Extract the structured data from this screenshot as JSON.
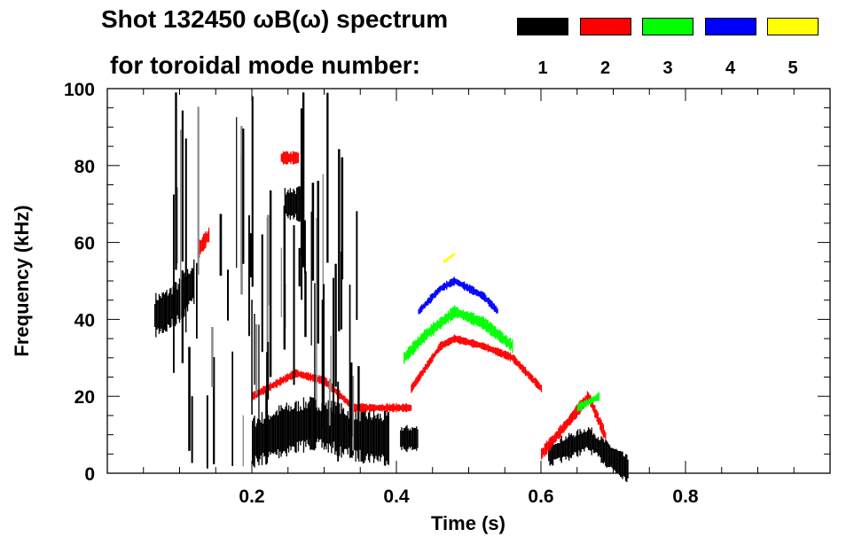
{
  "chart_data": {
    "type": "heatmap",
    "title_line1": "Shot 132450 ωB(ω) spectrum",
    "title_line2": "for toroidal mode number:",
    "xlabel": "Time (s)",
    "ylabel": "Frequency (kHz)",
    "xlim": [
      0,
      1.0
    ],
    "ylim": [
      0,
      100
    ],
    "xticks": [
      0.2,
      0.4,
      0.6,
      0.8
    ],
    "xtick_labels": [
      "0.2",
      "0.4",
      "0.6",
      "0.8"
    ],
    "yticks": [
      0,
      20,
      40,
      60,
      80,
      100
    ],
    "ytick_labels": [
      "0",
      "20",
      "40",
      "60",
      "80",
      "100"
    ],
    "legend": [
      {
        "mode": "1",
        "color": "#000000"
      },
      {
        "mode": "2",
        "color": "#ff0000"
      },
      {
        "mode": "3",
        "color": "#00ff00"
      },
      {
        "mode": "4",
        "color": "#0000ff"
      },
      {
        "mode": "5",
        "color": "#ffff00"
      }
    ],
    "features": [
      {
        "mode": 1,
        "t": [
          0.065,
          0.08,
          0.1,
          0.12
        ],
        "f": [
          41,
          42,
          45,
          50
        ],
        "width_khz": 10
      },
      {
        "mode": 1,
        "t": [
          0.2,
          0.24,
          0.28,
          0.31,
          0.34,
          0.39
        ],
        "f": [
          8,
          11,
          13,
          12,
          10,
          9
        ],
        "width_khz": 12
      },
      {
        "mode": 1,
        "t": [
          0.405,
          0.43
        ],
        "f": [
          9,
          9
        ],
        "width_khz": 6
      },
      {
        "mode": 1,
        "t": [
          0.245,
          0.27
        ],
        "f": [
          70,
          70
        ],
        "width_khz": 8
      },
      {
        "mode": 1,
        "t": [
          0.61,
          0.64,
          0.665,
          0.69,
          0.72
        ],
        "f": [
          5,
          7,
          9,
          5,
          1
        ],
        "width_khz": 6
      },
      {
        "mode": 2,
        "t": [
          0.24,
          0.265
        ],
        "f": [
          82,
          82
        ],
        "width_khz": 3
      },
      {
        "mode": 2,
        "t": [
          0.2,
          0.24,
          0.26,
          0.3,
          0.34,
          0.42
        ],
        "f": [
          20,
          24,
          26,
          24,
          17,
          17
        ],
        "width_khz": 2
      },
      {
        "mode": 2,
        "t": [
          0.42,
          0.46,
          0.48,
          0.52,
          0.56,
          0.6
        ],
        "f": [
          22,
          33,
          35,
          33,
          30,
          22
        ],
        "width_khz": 2
      },
      {
        "mode": 2,
        "t": [
          0.6,
          0.64,
          0.665,
          0.69
        ],
        "f": [
          5,
          14,
          20,
          9
        ],
        "width_khz": 3
      },
      {
        "mode": 2,
        "t": [
          0.125,
          0.14
        ],
        "f": [
          58,
          62
        ],
        "width_khz": 4
      },
      {
        "mode": 3,
        "t": [
          0.41,
          0.44,
          0.48,
          0.52,
          0.56
        ],
        "f": [
          30,
          36,
          42,
          39,
          33
        ],
        "width_khz": 3
      },
      {
        "mode": 3,
        "t": [
          0.65,
          0.68
        ],
        "f": [
          17,
          20
        ],
        "width_khz": 2
      },
      {
        "mode": 4,
        "t": [
          0.43,
          0.46,
          0.48,
          0.52,
          0.54
        ],
        "f": [
          42,
          48,
          50,
          46,
          42
        ],
        "width_khz": 2
      },
      {
        "mode": 5,
        "t": [
          0.465,
          0.48
        ],
        "f": [
          55,
          57
        ],
        "width_khz": 1
      }
    ]
  }
}
